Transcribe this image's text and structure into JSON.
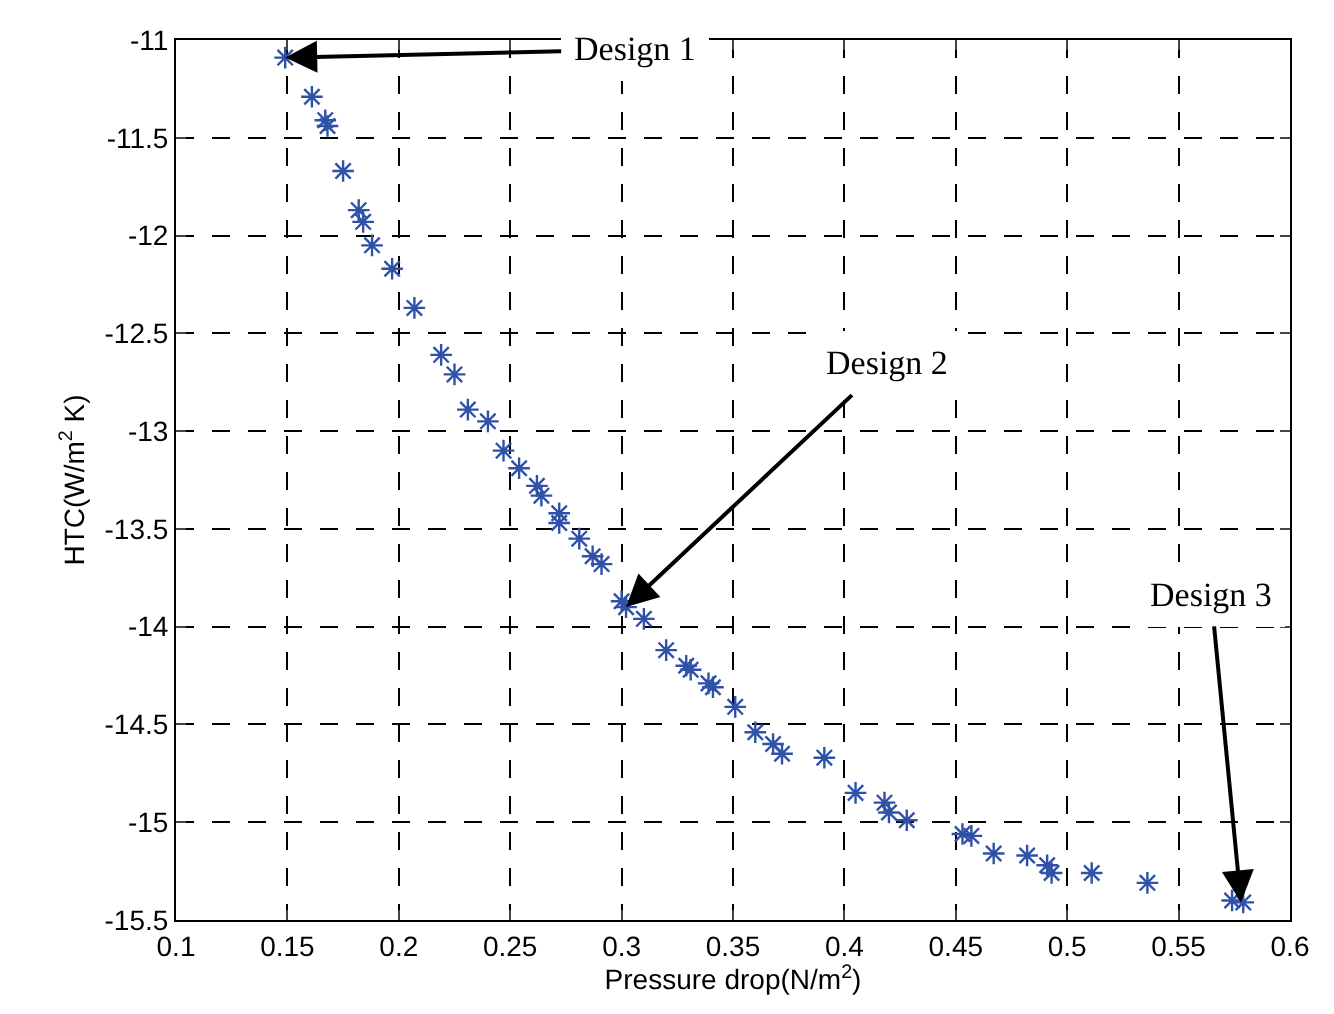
{
  "chart_data": {
    "type": "scatter",
    "xlabel": "Pressure drop(N/m$^{2}$)",
    "ylabel": "HTC(W/m$^{2}$ K)",
    "x": [
      0.149,
      0.161,
      0.167,
      0.168,
      0.175,
      0.182,
      0.184,
      0.188,
      0.197,
      0.207,
      0.219,
      0.225,
      0.231,
      0.24,
      0.247,
      0.254,
      0.262,
      0.264,
      0.272,
      0.272,
      0.281,
      0.287,
      0.291,
      0.3,
      0.302,
      0.31,
      0.32,
      0.329,
      0.331,
      0.339,
      0.341,
      0.351,
      0.36,
      0.368,
      0.372,
      0.391,
      0.405,
      0.418,
      0.42,
      0.428,
      0.453,
      0.457,
      0.467,
      0.482,
      0.491,
      0.493,
      0.511,
      0.536,
      0.574,
      0.579
    ],
    "series": [
      {
        "color": "#2f52a8",
        "values": [
          -11.09,
          -11.29,
          -11.41,
          -11.44,
          -11.67,
          -11.87,
          -11.93,
          -12.05,
          -12.17,
          -12.37,
          -12.61,
          -12.71,
          -12.89,
          -12.95,
          -13.1,
          -13.19,
          -13.28,
          -13.33,
          -13.42,
          -13.47,
          -13.55,
          -13.64,
          -13.68,
          -13.87,
          -13.9,
          -13.96,
          -14.12,
          -14.2,
          -14.22,
          -14.29,
          -14.31,
          -14.41,
          -14.54,
          -14.6,
          -14.65,
          -14.67,
          -14.85,
          -14.9,
          -14.95,
          -14.99,
          -15.06,
          -15.07,
          -15.16,
          -15.17,
          -15.22,
          -15.26,
          -15.26,
          -15.31,
          -15.4,
          -15.41
        ]
      }
    ],
    "xlim": [
      0.1,
      0.6
    ],
    "xticks": [
      0.1,
      0.15,
      0.2,
      0.25,
      0.3,
      0.35,
      0.4,
      0.45,
      0.5,
      0.55,
      0.6
    ],
    "ylim": [
      -15.5,
      -11
    ],
    "yticks": [
      -15.5,
      -15,
      -14.5,
      -14,
      -13.5,
      -13,
      -12.5,
      -12,
      -11.5,
      -11
    ],
    "grid": true,
    "marker": "cross",
    "annotations": [
      {
        "text": "Design 1",
        "x": 0.149,
        "y": -11.09
      },
      {
        "text": "Design 2",
        "x": 0.302,
        "y": -13.9
      },
      {
        "text": "Design 3",
        "x": 0.578,
        "y": -15.41
      }
    ]
  }
}
